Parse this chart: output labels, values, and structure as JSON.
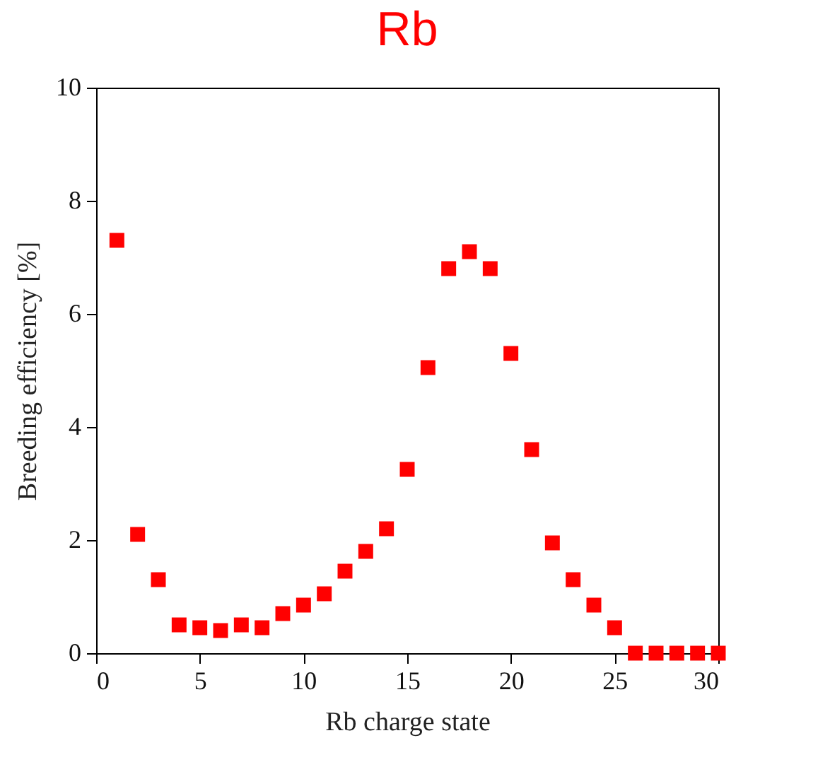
{
  "chart_data": {
    "type": "scatter",
    "title": "Rb",
    "xlabel": "Rb charge state",
    "ylabel": "Breeding efficiency [%]",
    "x": [
      1,
      2,
      3,
      4,
      5,
      6,
      7,
      8,
      9,
      10,
      11,
      12,
      13,
      14,
      15,
      16,
      17,
      18,
      19,
      20,
      21,
      22,
      23,
      24,
      25,
      26,
      27,
      28,
      29,
      30
    ],
    "series": [
      {
        "color": "#ff0000",
        "values": [
          7.3,
          2.1,
          1.3,
          0.5,
          0.45,
          0.4,
          0.5,
          0.45,
          0.7,
          0.85,
          1.05,
          1.45,
          1.8,
          2.2,
          3.25,
          5.05,
          6.8,
          7.1,
          6.8,
          5.3,
          3.6,
          1.95,
          1.3,
          0.85,
          0.45,
          0,
          0,
          0,
          0,
          0
        ]
      }
    ],
    "marker": "square",
    "xlim": [
      0,
      30
    ],
    "xticks": [
      0,
      5,
      10,
      15,
      20,
      25,
      30
    ],
    "ylim": [
      0,
      10
    ],
    "yticks": [
      0,
      2,
      4,
      6,
      8,
      10
    ],
    "grid": false,
    "legend": false
  }
}
